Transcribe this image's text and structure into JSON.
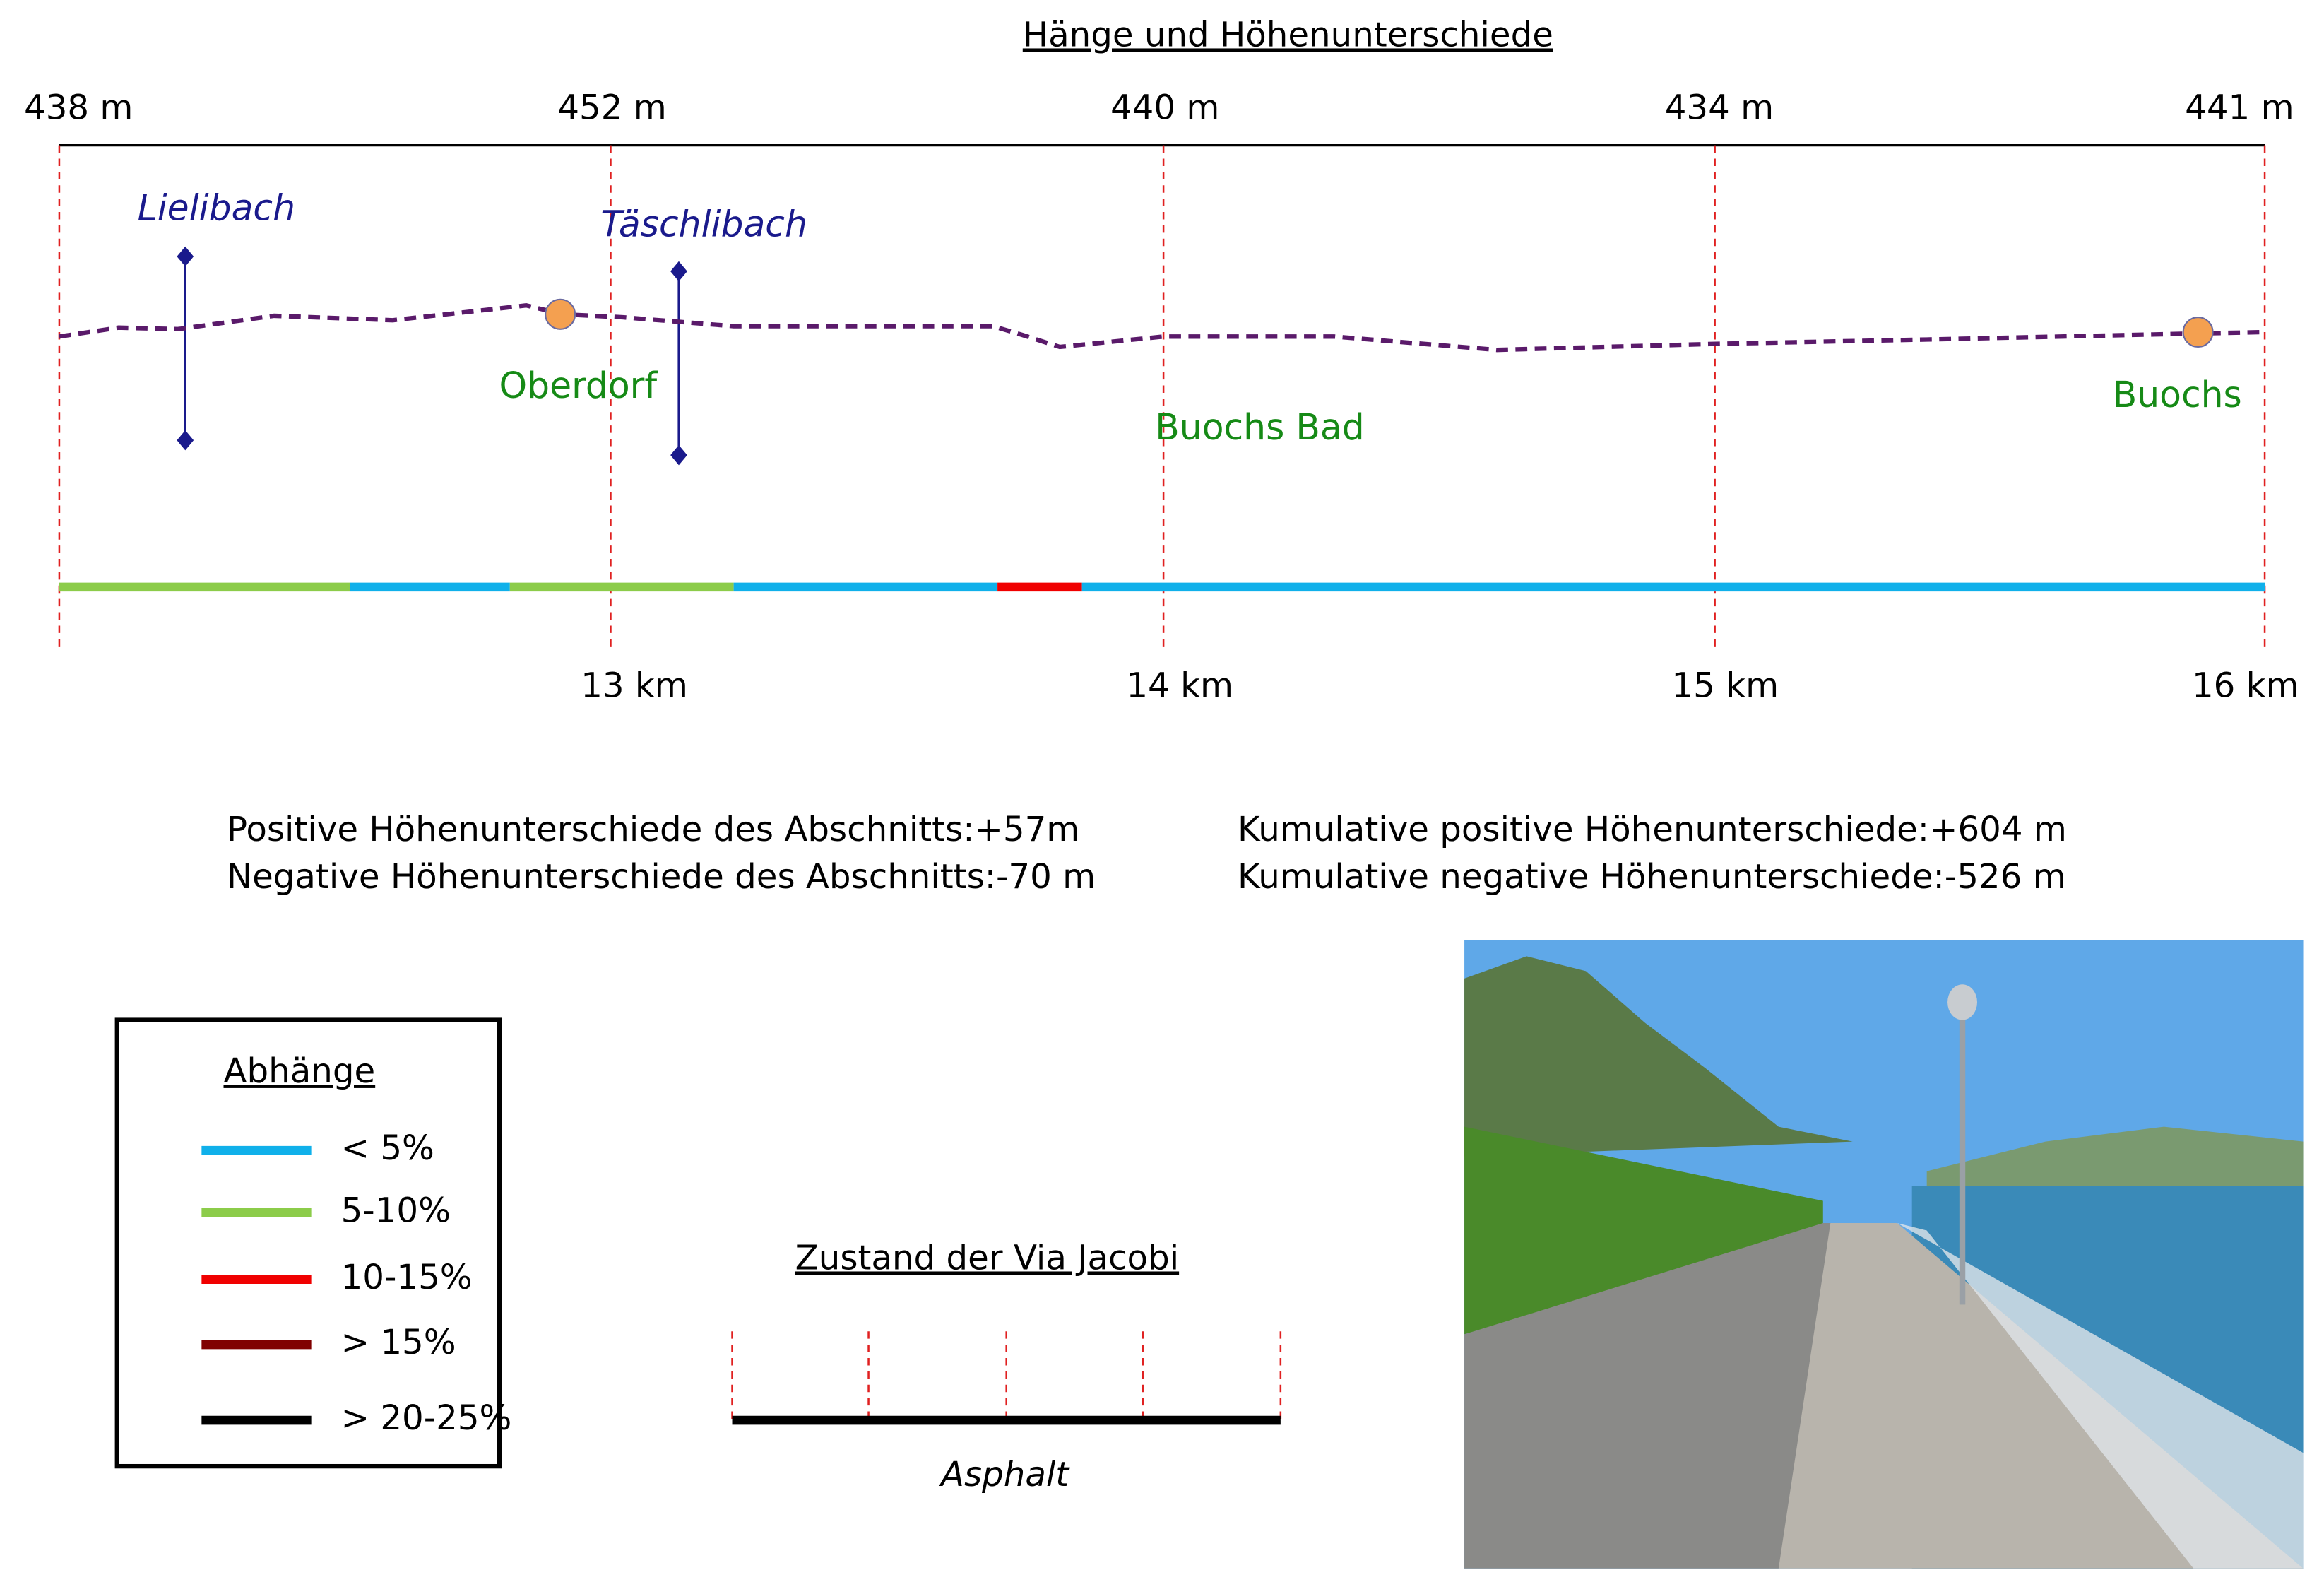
{
  "header": {
    "title": "Hänge und Höhenunterschiede"
  },
  "profile": {
    "elevations": [
      "438 m",
      "452 m",
      "440 m",
      "434 m",
      "441 m"
    ],
    "distances": [
      "13 km",
      "14 km",
      "15 km",
      "16 km"
    ],
    "streams": [
      "Lielibach",
      "Täschlibach"
    ],
    "places": [
      "Oberdorf",
      "Buochs Bad",
      "Buochs"
    ]
  },
  "stats": {
    "section_positive": "Positive Höhenunterschiede des Abschnitts:+57m",
    "section_negative": "Negative Höhenunterschiede des Abschnitts:-70 m",
    "cumulative_positive": "Kumulative positive Höhenunterschiede:+604 m",
    "cumulative_negative": "Kumulative negative Höhenunterschiede:-526 m"
  },
  "legend": {
    "title": "Abhänge",
    "items": [
      {
        "label": "< 5%",
        "color": "#10b0ea"
      },
      {
        "label": "5-10%",
        "color": "#8ccc4a"
      },
      {
        "label": "10-15%",
        "color": "#f00000"
      },
      {
        "label": "> 15%",
        "color": "#800000"
      },
      {
        "label": "> 20-25%",
        "color": "#000000"
      }
    ]
  },
  "surface": {
    "title": "Zustand der Via Jacobi",
    "label": "Asphalt"
  }
}
